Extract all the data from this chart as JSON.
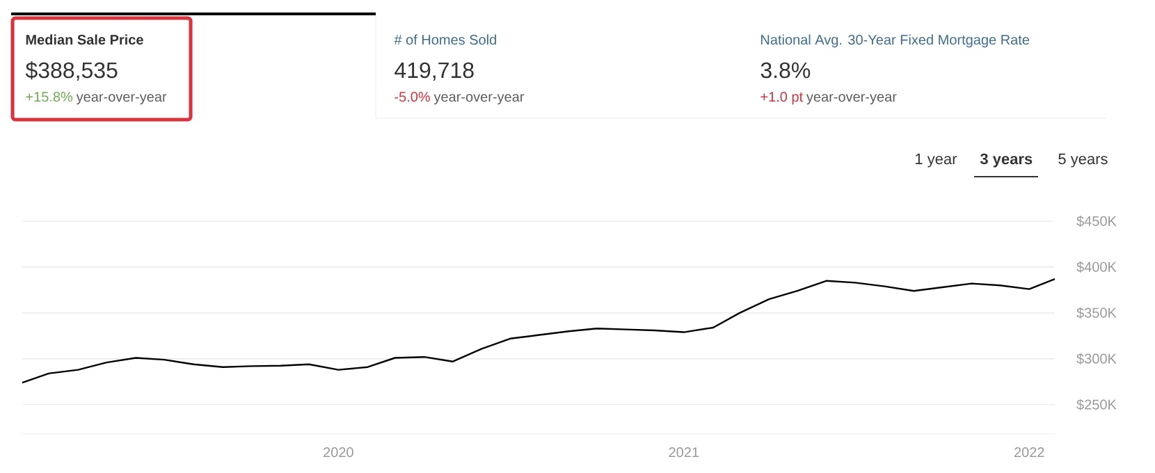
{
  "chart_data": {
    "type": "line",
    "title": "Median Sale Price",
    "subtitle": "$388,535",
    "annotations": [
      "+15.8%",
      "year-over-year",
      "# of Homes Sold",
      "419,718",
      "-5.0%",
      "year-over-year",
      "National Avg. 30-Year Fixed Mortgage Rate",
      "3.8%",
      "+1.0 pt",
      "year-over-year",
      "1 year",
      "3 years",
      "5 years"
    ],
    "x": [
      "2019-02-01",
      "2019-03-01",
      "2019-04-01",
      "2019-05-01",
      "2019-06-01",
      "2019-07-01",
      "2019-08-01",
      "2019-09-01",
      "2019-10-01",
      "2019-11-01",
      "2019-12-01",
      "2020-01-01",
      "2020-02-01",
      "2020-03-01",
      "2020-04-01",
      "2020-05-01",
      "2020-06-01",
      "2020-07-01",
      "2020-08-01",
      "2020-09-01",
      "2020-10-01",
      "2020-11-01",
      "2020-12-01",
      "2021-01-01",
      "2021-02-01",
      "2021-03-01",
      "2021-04-01",
      "2021-05-01",
      "2021-06-01",
      "2021-07-01",
      "2021-08-01",
      "2021-09-01",
      "2021-10-01",
      "2021-11-01",
      "2021-12-01",
      "2022-01-01",
      "2022-01-28"
    ],
    "series": [
      {
        "color": "#000000",
        "values": [
          274000,
          284000,
          288000,
          296000,
          301000,
          299000,
          294000,
          291000,
          292000,
          292500,
          294000,
          288000,
          291000,
          301000,
          302000,
          297000,
          311000,
          322000,
          326000,
          330000,
          333000,
          332000,
          331000,
          329000,
          334000,
          350000,
          365000,
          374000,
          385000,
          383000,
          379000,
          374000,
          378000,
          382000,
          380000,
          376000,
          387000
        ]
      }
    ],
    "xlim": [
      "2019-02-01",
      "2022-01-28"
    ],
    "xticks": [
      {
        "value": "2020-01-01",
        "label": "2020"
      },
      {
        "value": "2021-01-01",
        "label": "2021"
      },
      {
        "value": "2022-01-01",
        "label": "2022"
      }
    ],
    "ylim": [
      218000,
      450000
    ],
    "yticks": [
      {
        "value": 250000,
        "label": "$250K"
      },
      {
        "value": 300000,
        "label": "$300K"
      },
      {
        "value": 350000,
        "label": "$350K"
      },
      {
        "value": 400000,
        "label": "$400K"
      },
      {
        "value": 450000,
        "label": "$450K"
      }
    ],
    "grid": "y"
  }
}
